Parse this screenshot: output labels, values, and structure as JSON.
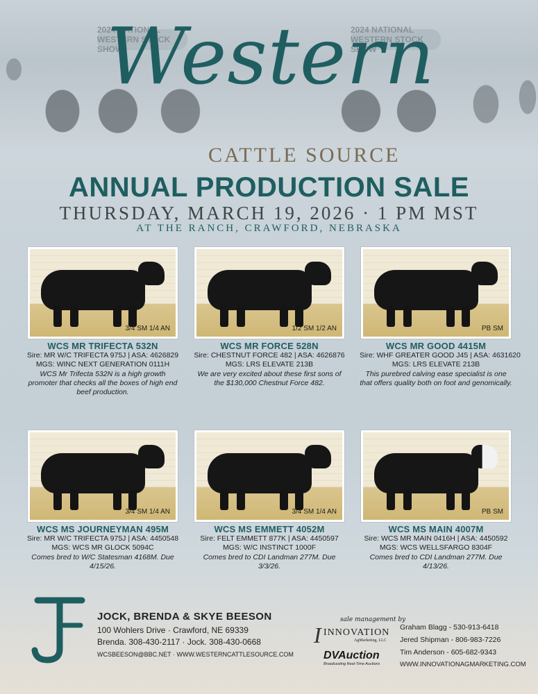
{
  "header": {
    "banner_left": "2024 NATIONAL WESTERN STOCK SHOW",
    "banner_right": "2024 NATIONAL WESTERN STOCK SHOW",
    "script_title": "Western",
    "cattle_source": "CATTLE SOURCE",
    "sale_title": "ANNUAL PRODUCTION SALE",
    "sale_date": "THURSDAY, MARCH 19, 2026 · 1 PM MST",
    "sale_location": "AT THE RANCH, CRAWFORD, NEBRASKA"
  },
  "lots": [
    {
      "name": "WCS MR TRIFECTA 532N",
      "breed_tag": "3/4 SM 1/4 AN",
      "sire": "Sire: MR W/C TRIFECTA 975J | ASA: 4626829",
      "mgs": "MGS: WINC NEXT GENERATION 0111H",
      "desc": "WCS Mr Trifecta 532N is a high growth promoter that checks all the boxes of high end beef production."
    },
    {
      "name": "WCS MR FORCE 528N",
      "breed_tag": "1/2 SM 1/2 AN",
      "sire": "Sire: CHESTNUT FORCE 482 | ASA: 4626876",
      "mgs": "MGS: LRS ELEVATE 213B",
      "desc": "We are very excited about these first sons of the $130,000 Chestnut Force 482."
    },
    {
      "name": "WCS MR GOOD 4415M",
      "breed_tag": "PB SM",
      "sire": "Sire: WHF GREATER GOOD J45 | ASA: 4631620",
      "mgs": "MGS: LRS ELEVATE 213B",
      "desc": "This purebred calving ease specialist is one that offers quality both on foot and genomically."
    },
    {
      "name": "WCS MS JOURNEYMAN 495M",
      "breed_tag": "3/4 SM 1/4 AN",
      "sire": "Sire: MR W/C TRIFECTA 975J | ASA: 4450548",
      "mgs": "MGS: WCS MR GLOCK 5094C",
      "desc": "Comes bred to W/C Statesman 4168M. Due 4/15/26."
    },
    {
      "name": "WCS MS EMMETT 4052M",
      "breed_tag": "3/4 SM 1/4 AN",
      "sire": "Sire: FELT EMMETT 877K | ASA: 4450597",
      "mgs": "MGS: W/C INSTINCT 1000F",
      "desc": "Comes bred to CDI Landman 277M. Due 3/3/26."
    },
    {
      "name": "WCS MS MAIN 4007M",
      "breed_tag": "PB SM",
      "sire": "Sire: WCS MR MAIN 0416H | ASA: 4450592",
      "mgs": "MGS: WCS WELLSFARGO 8304F",
      "desc": "Comes bred to CDI Landman 277M. Due 4/13/26."
    }
  ],
  "footer": {
    "owners": "JOCK, BRENDA & SKYE BEESON",
    "address": "100 Wohlers Drive  ·  Crawford, NE 69339",
    "phones": "Brenda. 308-430-2117  ·  Jock. 308-430-0668",
    "web": "WCSBEESON@BBC.NET  ·  WWW.WESTERNCATTLESOURCE.COM",
    "mgmt_label": "sale management by",
    "innovation_name": "INNOVATION",
    "innovation_sub": "AgMarketing, LLC",
    "dv_name": "DVAuction",
    "dv_tag": "Broadcasting Real-Time Auctions",
    "contacts": [
      "Graham Blagg - 530-913-6418",
      "Jered Shipman - 806-983-7226",
      "Tim Anderson - 605-682-9343",
      "WWW.INNOVATIONAGMARKETING.COM"
    ]
  },
  "colors": {
    "teal": "#1f5e60",
    "tan": "#7a6a52"
  }
}
